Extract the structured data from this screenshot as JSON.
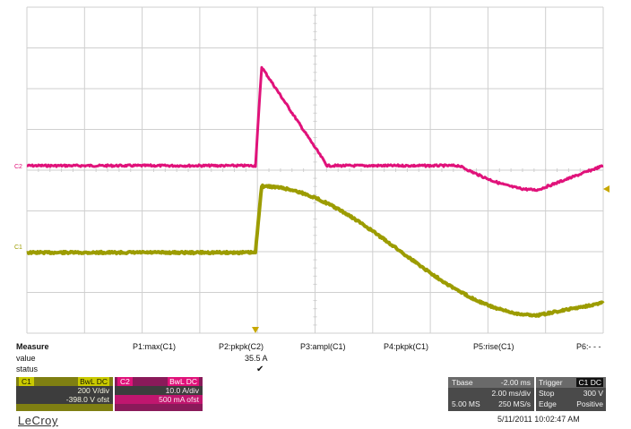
{
  "channels": {
    "c1": {
      "label": "C1",
      "color": "#9c9c00"
    },
    "c2": {
      "label": "C2",
      "color": "#e0127a"
    }
  },
  "measure": {
    "row_labels": {
      "measure": "Measure",
      "value": "value",
      "status": "status"
    },
    "params": [
      {
        "name": "P1:max(C1)",
        "value": "",
        "status": ""
      },
      {
        "name": "P2:pkpk(C2)",
        "value": "35.5 A",
        "status": "✔"
      },
      {
        "name": "P3:ampl(C1)",
        "value": "",
        "status": ""
      },
      {
        "name": "P4:pkpk(C1)",
        "value": "",
        "status": ""
      },
      {
        "name": "P5:rise(C1)",
        "value": "",
        "status": ""
      },
      {
        "name": "P6:- - -",
        "value": "",
        "status": ""
      }
    ]
  },
  "channel_boxes": {
    "c1": {
      "tag": "C1",
      "coupling": "BwL DC",
      "scale": "200 V/div",
      "offset": "-398.0 V ofst"
    },
    "c2": {
      "tag": "C2",
      "coupling": "BwL DC",
      "scale": "10.0 A/div",
      "offset": "500 mA ofst"
    }
  },
  "timebase": {
    "label": "Tbase",
    "delay": "-2.00 ms",
    "scale": "2.00 ms/div",
    "samples": "5.00 MS",
    "rate": "250 MS/s"
  },
  "trigger": {
    "label": "Trigger",
    "source": "C1 DC",
    "mode": "Stop",
    "level": "300 V",
    "type": "Edge",
    "slope": "Positive"
  },
  "brand": "LeCroy",
  "timestamp": "5/11/2011 10:02:47 AM",
  "colors": {
    "grid": "#cfcfcf",
    "marker": "#c8a800"
  }
}
